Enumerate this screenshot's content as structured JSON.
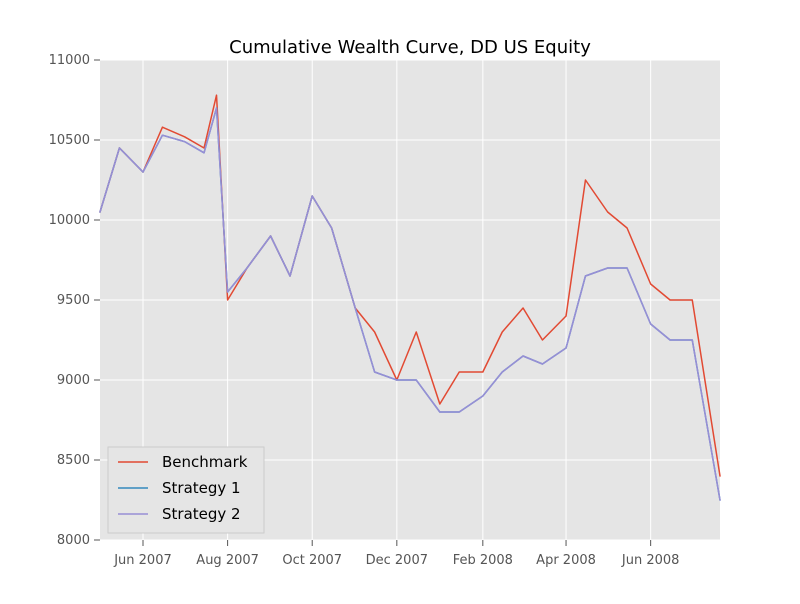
{
  "chart_data": {
    "type": "line",
    "title": "Cumulative Wealth Curve, DD US Equity",
    "xlabel": "",
    "ylabel": "",
    "xlim": [
      "2007-05-01",
      "2008-07-21"
    ],
    "ylim": [
      8000,
      11000
    ],
    "grid": true,
    "legend_position": "lower-left",
    "x_tick_labels": [
      "Jun 2007",
      "Aug 2007",
      "Oct 2007",
      "Dec 2007",
      "Feb 2008",
      "Apr 2008",
      "Jun 2008"
    ],
    "x_tick_dates": [
      "2007-06-01",
      "2007-08-01",
      "2007-10-01",
      "2007-12-01",
      "2008-02-01",
      "2008-04-01",
      "2008-06-01"
    ],
    "y_ticks": [
      8000,
      8500,
      9000,
      9500,
      10000,
      10500,
      11000
    ],
    "y_tick_labels": [
      "8000",
      "8500",
      "9000",
      "9500",
      "10000",
      "10500",
      "11000"
    ],
    "x": [
      "2007-05-01",
      "2007-05-15",
      "2007-06-01",
      "2007-06-15",
      "2007-07-01",
      "2007-07-15",
      "2007-07-24",
      "2007-08-01",
      "2007-08-15",
      "2007-09-01",
      "2007-09-15",
      "2007-10-01",
      "2007-10-15",
      "2007-11-01",
      "2007-11-15",
      "2007-12-01",
      "2007-12-15",
      "2008-01-01",
      "2008-01-15",
      "2008-02-01",
      "2008-02-15",
      "2008-03-01",
      "2008-03-15",
      "2008-04-01",
      "2008-04-15",
      "2008-05-01",
      "2008-05-15",
      "2008-06-01",
      "2008-06-15",
      "2008-07-01",
      "2008-07-21"
    ],
    "series": [
      {
        "name": "Benchmark",
        "color": "#e24a33",
        "values": [
          10050,
          10450,
          10300,
          10580,
          10520,
          10450,
          10780,
          9500,
          9700,
          9900,
          9650,
          10150,
          9950,
          9450,
          9300,
          9000,
          9300,
          8850,
          9050,
          9050,
          9300,
          9450,
          9250,
          9400,
          10250,
          10050,
          9950,
          9600,
          9500,
          9500,
          8400
        ]
      },
      {
        "name": "Strategy 1",
        "color": "#348abd",
        "values": [
          10050,
          10450,
          10300,
          10530,
          10490,
          10420,
          10700,
          9550,
          9700,
          9900,
          9650,
          10150,
          9950,
          9450,
          9050,
          9000,
          9000,
          8800,
          8800,
          8900,
          9050,
          9150,
          9100,
          9200,
          9650,
          9700,
          9700,
          9350,
          9250,
          9250,
          8250
        ]
      },
      {
        "name": "Strategy 2",
        "color": "#988ed5",
        "values": [
          10050,
          10450,
          10300,
          10530,
          10490,
          10420,
          10700,
          9550,
          9700,
          9900,
          9650,
          10150,
          9950,
          9450,
          9050,
          9000,
          9000,
          8800,
          8800,
          8900,
          9050,
          9150,
          9100,
          9200,
          9650,
          9700,
          9700,
          9350,
          9250,
          9250,
          8250
        ]
      }
    ]
  }
}
